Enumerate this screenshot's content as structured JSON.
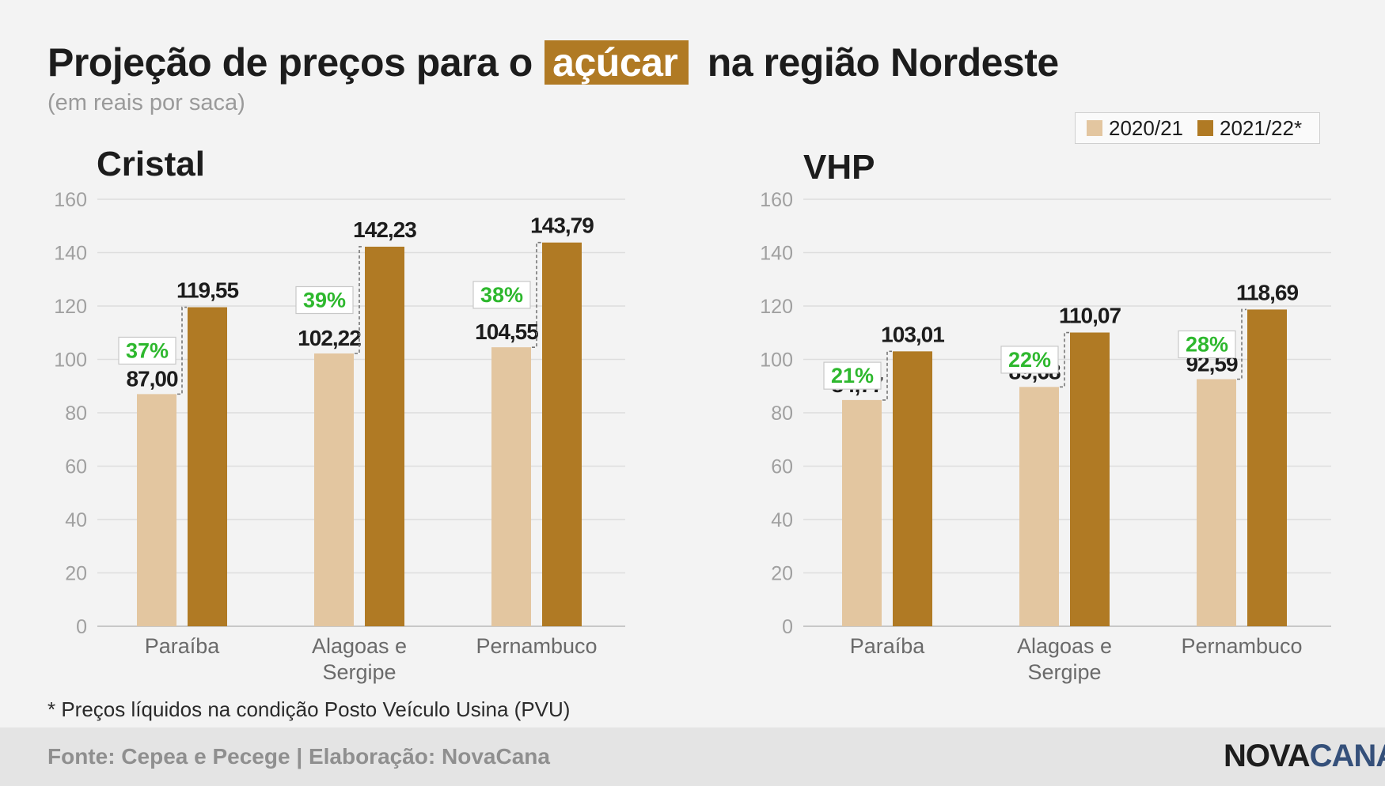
{
  "title": {
    "before": "Projeção de preços para o",
    "highlight": "açúcar",
    "after": "na região Nordeste"
  },
  "subtitle": "(em reais por saca)",
  "legend": {
    "items": [
      {
        "label": "2020/21",
        "color": "#e3c6a0"
      },
      {
        "label": "2021/22*",
        "color": "#b07a24"
      }
    ]
  },
  "footnote": "* Preços líquidos na condição Posto Veículo Usina (PVU)",
  "footer": {
    "source": "Fonte: Cepea e Pecege | Elaboração: NovaCana",
    "brand_part1": "NOVA",
    "brand_part2": "CANA",
    "brand_color1": "#1d1d1d",
    "brand_color2": "#35507a"
  },
  "colors": {
    "series_2020": "#e3c6a0",
    "series_2021": "#b07a24",
    "pct_text": "#2eb82e",
    "grid": "#dddddd",
    "axis_text": "#a0a0a0"
  },
  "chart_data": [
    {
      "type": "bar",
      "title": "Cristal",
      "categories": [
        [
          "Paraíba"
        ],
        [
          "Alagoas e",
          "Sergipe"
        ],
        [
          "Pernambuco"
        ]
      ],
      "series": [
        {
          "name": "2020/21",
          "values": [
            87.0,
            102.22,
            104.55
          ],
          "labels": [
            "87,00",
            "102,22",
            "104,55"
          ]
        },
        {
          "name": "2021/22*",
          "values": [
            119.55,
            142.23,
            143.79
          ],
          "labels": [
            "119,55",
            "142,23",
            "143,79"
          ]
        }
      ],
      "change_labels": [
        "37%",
        "39%",
        "38%"
      ],
      "ylim": [
        0,
        160
      ],
      "yticks": [
        0,
        20,
        40,
        60,
        80,
        100,
        120,
        140,
        160
      ],
      "grid": true
    },
    {
      "type": "bar",
      "title": "VHP",
      "categories": [
        [
          "Paraíba"
        ],
        [
          "Alagoas e",
          "Sergipe"
        ],
        [
          "Pernambuco"
        ]
      ],
      "series": [
        {
          "name": "2020/21",
          "values": [
            84.77,
            89.68,
            92.59
          ],
          "labels": [
            "84,77",
            "89,68",
            "92,59"
          ]
        },
        {
          "name": "2021/22*",
          "values": [
            103.01,
            110.07,
            118.69
          ],
          "labels": [
            "103,01",
            "110,07",
            "118,69"
          ]
        }
      ],
      "change_labels": [
        "21%",
        "22%",
        "28%"
      ],
      "ylim": [
        0,
        160
      ],
      "yticks": [
        0,
        20,
        40,
        60,
        80,
        100,
        120,
        140,
        160
      ],
      "grid": true
    }
  ]
}
